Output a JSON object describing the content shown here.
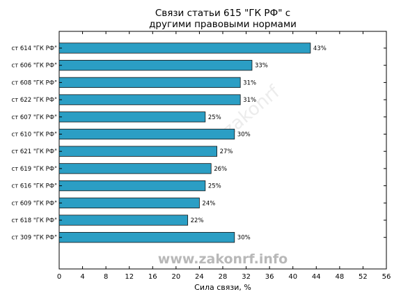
{
  "chart_data": {
    "type": "bar",
    "orientation": "horizontal",
    "title_lines": [
      "Связи статьи 615 \"ГК РФ\" с",
      "другими правовыми нормами"
    ],
    "xlabel": "Сила связи, %",
    "ylabel": "",
    "xlim": [
      0,
      56
    ],
    "xticks": [
      0,
      4,
      8,
      12,
      16,
      20,
      24,
      28,
      32,
      36,
      40,
      44,
      48,
      52,
      56
    ],
    "categories": [
      "ст 614 \"ГК РФ\"",
      "ст 606 \"ГК РФ\"",
      "ст 608 \"ГК РФ\"",
      "ст 622 \"ГК РФ\"",
      "ст 607 \"ГК РФ\"",
      "ст 610 \"ГК РФ\"",
      "ст 621 \"ГК РФ\"",
      "ст 619 \"ГК РФ\"",
      "ст 616 \"ГК РФ\"",
      "ст 609 \"ГК РФ\"",
      "ст 618 \"ГК РФ\"",
      "ст 309 \"ГК РФ\""
    ],
    "values": [
      43,
      33,
      31,
      31,
      25,
      30,
      27,
      26,
      25,
      24,
      22,
      30
    ],
    "data_labels": [
      "43%",
      "33%",
      "31%",
      "31%",
      "25%",
      "30%",
      "27%",
      "26%",
      "25%",
      "24%",
      "22%",
      "30%"
    ],
    "bar_color": "#2b9ec4",
    "grid": false,
    "legend": "none"
  },
  "watermark": "www.zakonrf.info",
  "watermark_faint": "zakonrf"
}
